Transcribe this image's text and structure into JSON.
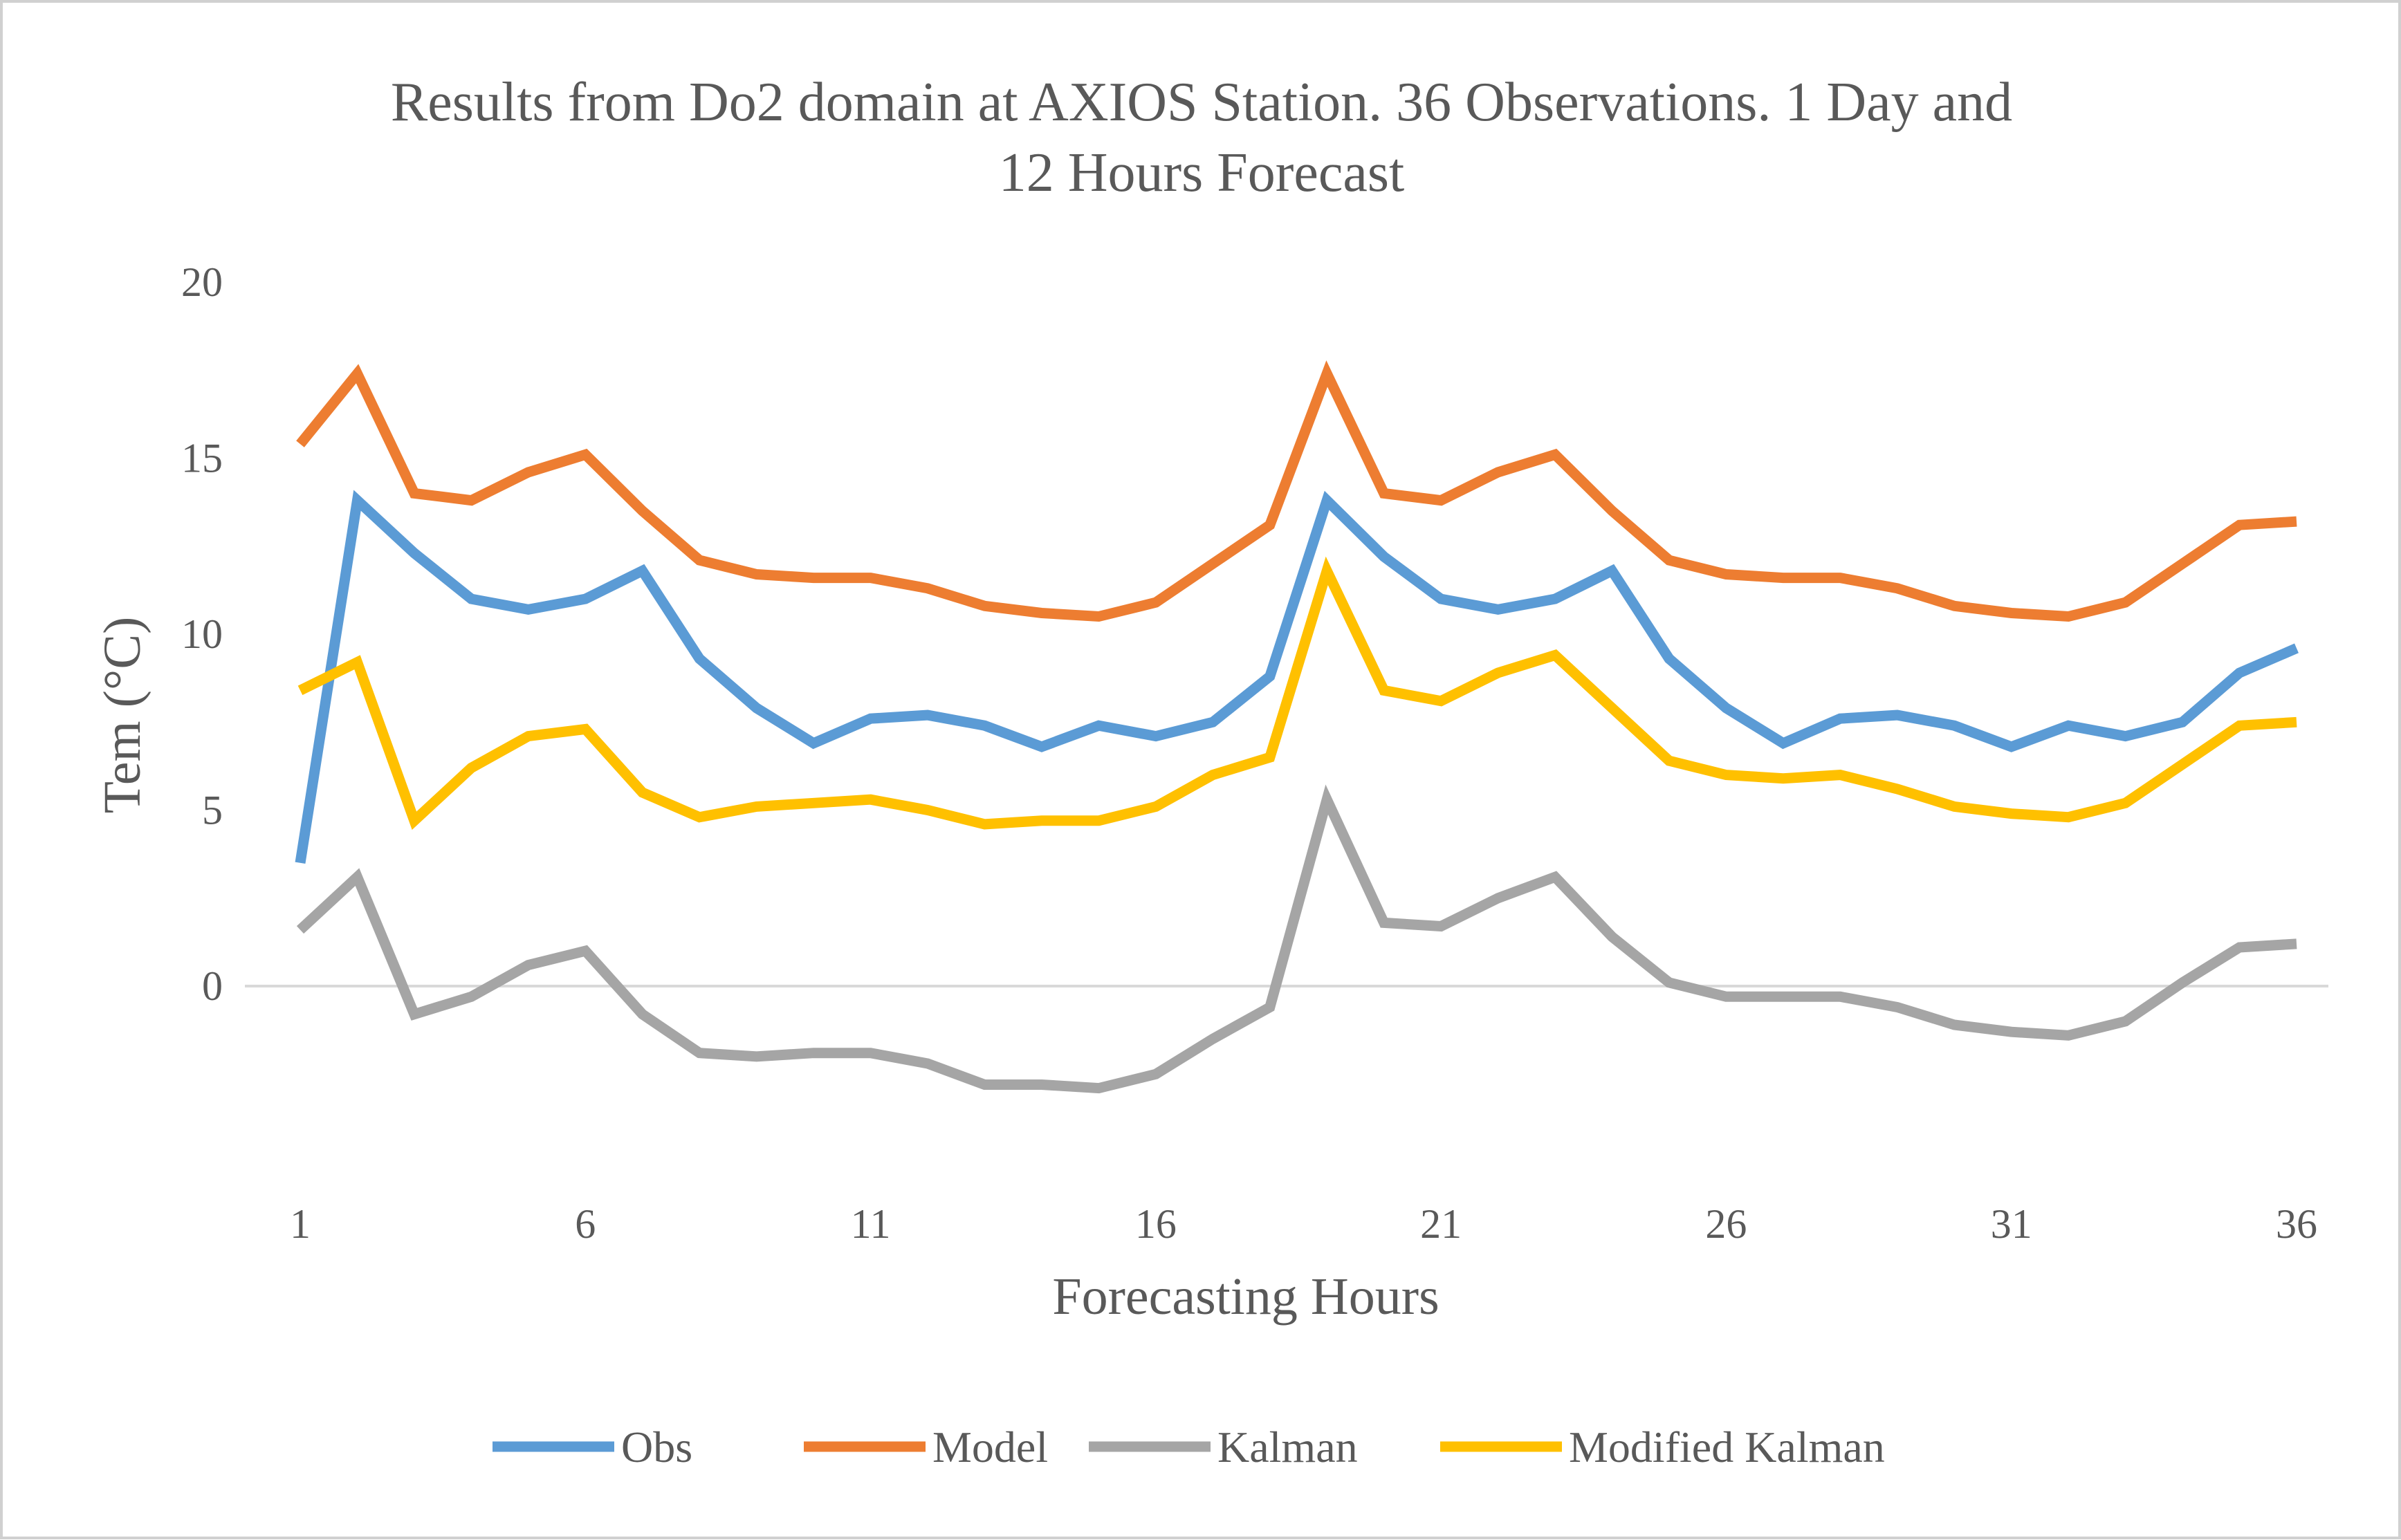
{
  "chart_data": {
    "type": "line",
    "title_lines": [
      "Results from Do2 domain at AXIOS Station. 36 Observations. 1 Day and",
      "12 Hours Forecast"
    ],
    "xlabel": "Forecasting Hours",
    "ylabel": "Tem (°C)",
    "ylim": [
      -5,
      20
    ],
    "y_ticks": [
      "0",
      "5",
      "10",
      "15",
      "20"
    ],
    "x_ticks": [
      "1",
      "6",
      "11",
      "16",
      "21",
      "26",
      "31",
      "36"
    ],
    "x": [
      1,
      2,
      3,
      4,
      5,
      6,
      7,
      8,
      9,
      10,
      11,
      12,
      13,
      14,
      15,
      16,
      17,
      18,
      19,
      20,
      21,
      22,
      23,
      24,
      25,
      26,
      27,
      28,
      29,
      30,
      31,
      32,
      33,
      34,
      35,
      36
    ],
    "legend_position": "bottom",
    "series": [
      {
        "name": "Obs",
        "color": "#5b9bd5",
        "values": [
          3.5,
          13.8,
          12.3,
          11.0,
          10.7,
          11.0,
          11.8,
          9.3,
          7.9,
          6.9,
          7.6,
          7.7,
          7.4,
          6.8,
          7.4,
          7.1,
          7.5,
          8.8,
          13.8,
          12.2,
          11.0,
          10.7,
          11.0,
          11.8,
          9.3,
          7.9,
          6.9,
          7.6,
          7.7,
          7.4,
          6.8,
          7.4,
          7.1,
          7.5,
          8.9,
          9.6
        ]
      },
      {
        "name": "Model",
        "color": "#ed7d31",
        "values": [
          15.4,
          17.4,
          14.0,
          13.8,
          14.6,
          15.1,
          13.5,
          12.1,
          11.7,
          11.6,
          11.6,
          11.3,
          10.8,
          10.6,
          10.5,
          10.9,
          12.0,
          13.1,
          17.4,
          14.0,
          13.8,
          14.6,
          15.1,
          13.5,
          12.1,
          11.7,
          11.6,
          11.6,
          11.3,
          10.8,
          10.6,
          10.5,
          10.9,
          12.0,
          13.1,
          13.2
        ]
      },
      {
        "name": "Kalman",
        "color": "#a5a5a5",
        "values": [
          1.6,
          3.1,
          -0.8,
          -0.3,
          0.6,
          1.0,
          -0.8,
          -1.9,
          -2.0,
          -1.9,
          -1.9,
          -2.2,
          -2.8,
          -2.8,
          -2.9,
          -2.5,
          -1.5,
          -0.6,
          5.3,
          1.8,
          1.7,
          2.5,
          3.1,
          1.4,
          0.1,
          -0.3,
          -0.3,
          -0.3,
          -0.6,
          -1.1,
          -1.3,
          -1.4,
          -1.0,
          0.1,
          1.1,
          1.2
        ]
      },
      {
        "name": "Modified Kalman",
        "color": "#ffc000",
        "values": [
          8.4,
          9.2,
          4.7,
          6.2,
          7.1,
          7.3,
          5.5,
          4.8,
          5.1,
          5.2,
          5.3,
          5.0,
          4.6,
          4.7,
          4.7,
          5.1,
          6.0,
          6.5,
          11.8,
          8.4,
          8.1,
          8.9,
          9.4,
          7.9,
          6.4,
          6.0,
          5.9,
          6.0,
          5.6,
          5.1,
          4.9,
          4.8,
          5.2,
          6.3,
          7.4,
          7.5
        ]
      }
    ]
  }
}
